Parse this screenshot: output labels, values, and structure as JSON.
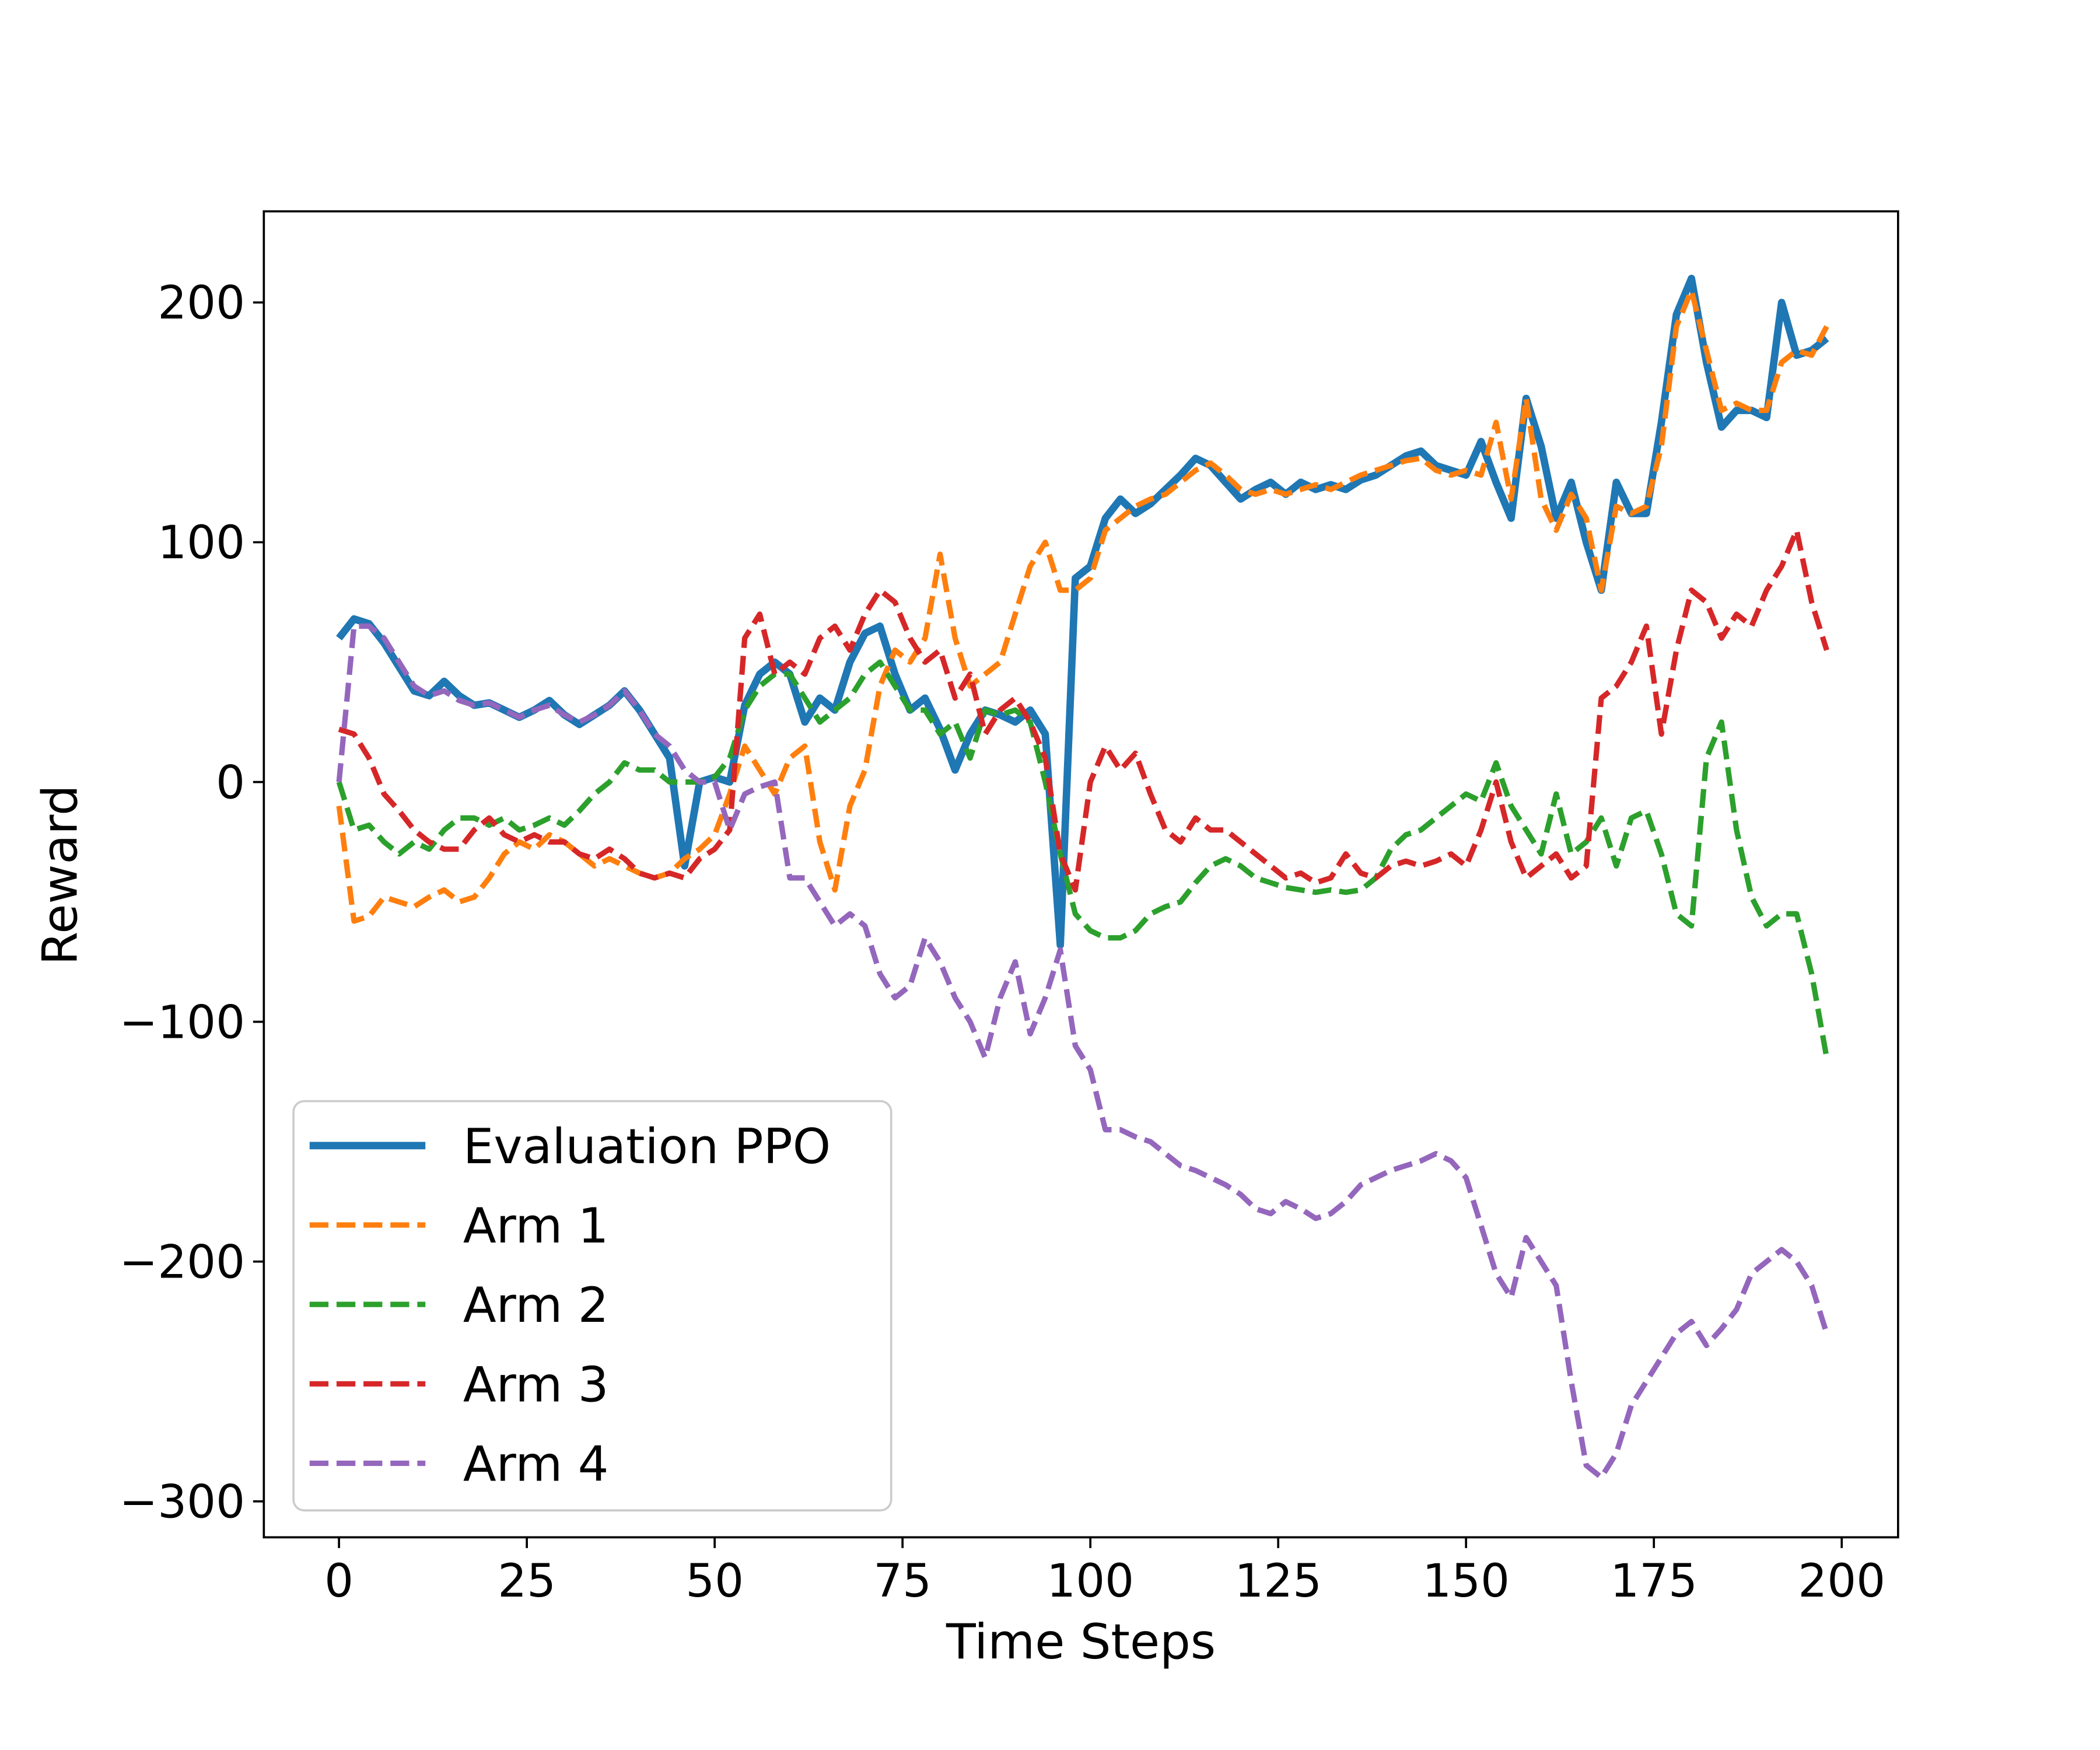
{
  "chart_data": {
    "type": "line",
    "x_label": "Time Steps",
    "y_label": "Reward",
    "xlim": [
      -10,
      207.5
    ],
    "ylim": [
      -315,
      238
    ],
    "xticks": [
      0,
      25,
      50,
      75,
      100,
      125,
      150,
      175,
      200
    ],
    "yticks": [
      {
        "value": -300,
        "label": "−300"
      },
      {
        "value": -200,
        "label": "−200"
      },
      {
        "value": -100,
        "label": "−100"
      },
      0,
      100,
      200
    ],
    "grid": false,
    "legend": "lower left",
    "x": [
      0,
      2,
      4,
      6,
      8,
      10,
      12,
      14,
      16,
      18,
      20,
      22,
      24,
      26,
      28,
      30,
      32,
      34,
      36,
      38,
      40,
      42,
      44,
      46,
      48,
      50,
      52,
      54,
      56,
      58,
      60,
      62,
      64,
      66,
      68,
      70,
      72,
      74,
      76,
      78,
      80,
      82,
      84,
      86,
      88,
      90,
      92,
      94,
      96,
      98,
      100,
      102,
      104,
      106,
      108,
      110,
      112,
      114,
      116,
      118,
      120,
      122,
      124,
      126,
      128,
      130,
      132,
      134,
      136,
      138,
      140,
      142,
      144,
      146,
      148,
      150,
      152,
      154,
      156,
      158,
      160,
      162,
      164,
      166,
      168,
      170,
      172,
      174,
      176,
      178,
      180,
      182,
      184,
      186,
      188,
      190,
      192,
      194,
      196,
      198
    ],
    "series": [
      {
        "name": "Evaluation PPO",
        "color": "#1f77b4",
        "linestyle": "solid",
        "values": [
          60,
          68,
          66,
          58,
          48,
          38,
          36,
          42,
          36,
          32,
          33,
          30,
          27,
          30,
          34,
          28,
          24,
          28,
          32,
          38,
          30,
          20,
          10,
          -35,
          0,
          2,
          0,
          32,
          45,
          50,
          45,
          25,
          35,
          30,
          50,
          62,
          65,
          45,
          30,
          35,
          22,
          5,
          20,
          30,
          28,
          25,
          30,
          20,
          -68,
          85,
          90,
          110,
          118,
          112,
          116,
          122,
          128,
          135,
          132,
          125,
          118,
          122,
          125,
          120,
          125,
          122,
          124,
          122,
          126,
          128,
          132,
          136,
          138,
          132,
          130,
          128,
          142,
          125,
          110,
          160,
          140,
          110,
          125,
          100,
          80,
          125,
          112,
          112,
          150,
          195,
          210,
          175,
          148,
          155,
          155,
          152,
          200,
          178,
          180,
          185
        ]
      },
      {
        "name": "Arm 1",
        "color": "#ff7f0e",
        "linestyle": "dashed",
        "values": [
          -10,
          -58,
          -56,
          -48,
          -50,
          -52,
          -48,
          -45,
          -50,
          -48,
          -40,
          -30,
          -25,
          -28,
          -22,
          -25,
          -30,
          -35,
          -32,
          -35,
          -38,
          -40,
          -38,
          -32,
          -28,
          -22,
          -5,
          15,
          5,
          -5,
          10,
          15,
          -25,
          -45,
          -10,
          5,
          40,
          55,
          50,
          60,
          95,
          60,
          40,
          45,
          50,
          70,
          90,
          100,
          80,
          80,
          85,
          105,
          110,
          115,
          118,
          120,
          125,
          130,
          133,
          128,
          122,
          120,
          122,
          120,
          122,
          124,
          122,
          125,
          128,
          130,
          132,
          134,
          135,
          130,
          128,
          130,
          128,
          150,
          118,
          160,
          118,
          105,
          120,
          110,
          80,
          115,
          112,
          115,
          140,
          190,
          205,
          180,
          155,
          158,
          155,
          155,
          175,
          180,
          178,
          190
        ]
      },
      {
        "name": "Arm 2",
        "color": "#2ca02c",
        "linestyle": "dashed",
        "values": [
          0,
          -20,
          -18,
          -25,
          -30,
          -25,
          -28,
          -20,
          -15,
          -15,
          -18,
          -15,
          -20,
          -18,
          -15,
          -18,
          -12,
          -5,
          0,
          8,
          5,
          5,
          0,
          0,
          0,
          2,
          10,
          30,
          40,
          45,
          45,
          35,
          25,
          30,
          35,
          45,
          50,
          40,
          30,
          30,
          20,
          25,
          10,
          30,
          28,
          30,
          25,
          0,
          -30,
          -55,
          -62,
          -65,
          -65,
          -62,
          -55,
          -52,
          -50,
          -42,
          -35,
          -32,
          -35,
          -40,
          -42,
          -44,
          -45,
          -46,
          -45,
          -46,
          -45,
          -40,
          -28,
          -22,
          -20,
          -15,
          -10,
          -5,
          -8,
          8,
          -10,
          -20,
          -30,
          -5,
          -30,
          -25,
          -15,
          -35,
          -15,
          -12,
          -30,
          -55,
          -60,
          10,
          25,
          -20,
          -48,
          -60,
          -55,
          -55,
          -80,
          -115
        ]
      },
      {
        "name": "Arm 3",
        "color": "#d62728",
        "linestyle": "dashed",
        "values": [
          22,
          20,
          10,
          -5,
          -12,
          -20,
          -25,
          -28,
          -28,
          -20,
          -15,
          -22,
          -25,
          -22,
          -25,
          -25,
          -30,
          -32,
          -28,
          -32,
          -38,
          -40,
          -38,
          -40,
          -32,
          -28,
          -20,
          60,
          70,
          45,
          50,
          45,
          60,
          65,
          55,
          70,
          80,
          75,
          60,
          50,
          55,
          35,
          45,
          20,
          30,
          35,
          25,
          10,
          -30,
          -45,
          0,
          15,
          5,
          12,
          -5,
          -20,
          -25,
          -15,
          -20,
          -20,
          -25,
          -30,
          -35,
          -40,
          -38,
          -42,
          -40,
          -30,
          -38,
          -40,
          -35,
          -33,
          -35,
          -33,
          -30,
          -35,
          -20,
          0,
          -25,
          -40,
          -35,
          -30,
          -40,
          -35,
          35,
          40,
          50,
          65,
          20,
          55,
          80,
          75,
          60,
          70,
          65,
          80,
          90,
          105,
          75,
          55
        ]
      },
      {
        "name": "Arm 4",
        "color": "#9467bd",
        "linestyle": "dashed",
        "values": [
          0,
          65,
          65,
          60,
          50,
          40,
          36,
          38,
          34,
          32,
          33,
          30,
          27,
          30,
          32,
          28,
          25,
          28,
          32,
          38,
          30,
          20,
          15,
          5,
          0,
          0,
          -20,
          -5,
          -2,
          0,
          -40,
          -40,
          -50,
          -60,
          -55,
          -60,
          -80,
          -90,
          -85,
          -65,
          -75,
          -90,
          -100,
          -115,
          -90,
          -75,
          -105,
          -90,
          -70,
          -110,
          -120,
          -145,
          -145,
          -148,
          -150,
          -155,
          -160,
          -162,
          -165,
          -168,
          -172,
          -178,
          -180,
          -175,
          -178,
          -182,
          -180,
          -175,
          -168,
          -165,
          -162,
          -160,
          -158,
          -155,
          -158,
          -165,
          -185,
          -205,
          -215,
          -190,
          -200,
          -210,
          -250,
          -285,
          -290,
          -280,
          -260,
          -250,
          -240,
          -230,
          -225,
          -235,
          -228,
          -220,
          -205,
          -200,
          -195,
          -200,
          -210,
          -230
        ]
      }
    ]
  }
}
